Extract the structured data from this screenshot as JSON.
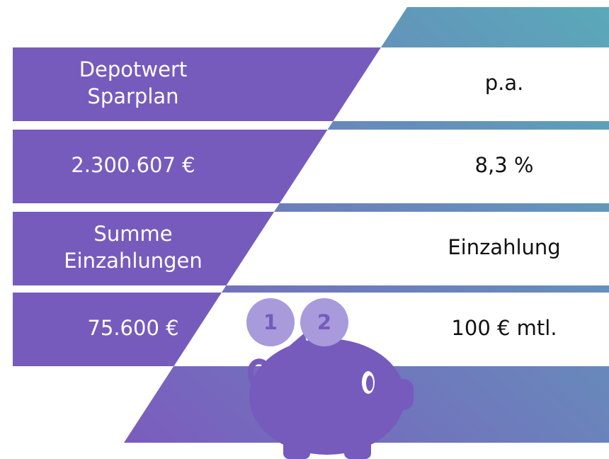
{
  "rows": [
    {
      "left": [
        "Depotwert",
        "Sparplan"
      ],
      "right": "p.a."
    },
    {
      "left": [
        "2.300.607 €"
      ],
      "right": "8,3 %"
    },
    {
      "left": [
        "Summe",
        "Einzahlungen"
      ],
      "right": "Einzahlung"
    },
    {
      "left": [
        "75.600 €"
      ],
      "right": "100 € mtl."
    }
  ],
  "coins": [
    "1",
    "2"
  ]
}
